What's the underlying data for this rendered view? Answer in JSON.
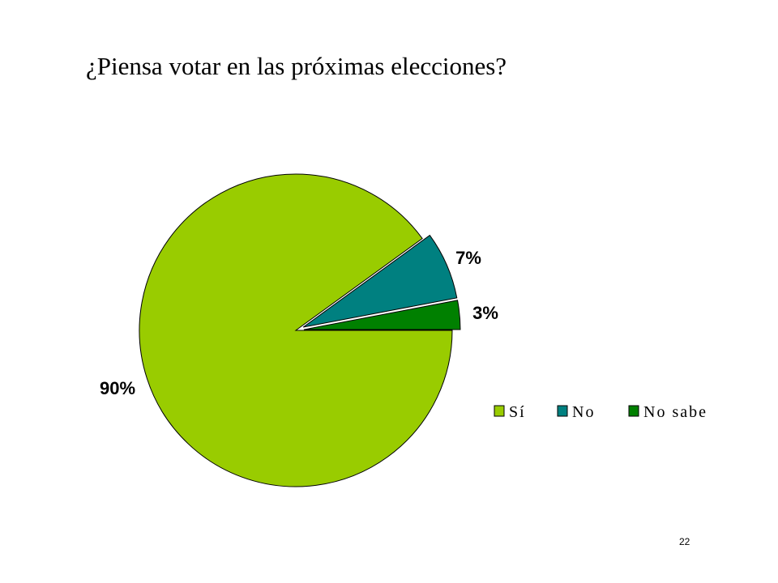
{
  "title": "¿Piensa votar en las próximas elecciones?",
  "page_number": "22",
  "colors": {
    "si": "#99CC00",
    "no": "#008080",
    "no_sabe": "#008000",
    "outline": "#000000"
  },
  "chart_data": {
    "type": "pie",
    "title": "¿Piensa votar en las próximas elecciones?",
    "labels": [
      "Sí",
      "No",
      "No sabe"
    ],
    "values": [
      90,
      7,
      3
    ],
    "data_labels": [
      "90%",
      "7%",
      "3%"
    ],
    "exploded": [
      false,
      true,
      true
    ],
    "legend": [
      "Sí",
      "No",
      "No sabe"
    ],
    "legend_position": "right"
  }
}
